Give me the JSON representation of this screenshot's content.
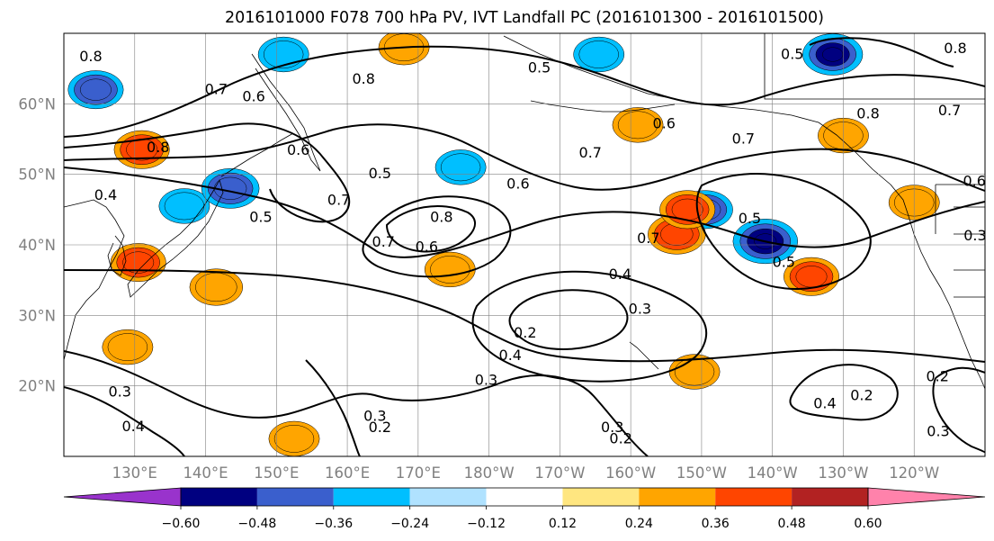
{
  "chart_data": {
    "type": "contour",
    "title": "2016101000 F078 700 hPa PV, IVT Landfall PC (2016101300 - 2016101500)",
    "grid": true,
    "lat_range": [
      10,
      70
    ],
    "lon_range": [
      120,
      250
    ],
    "lat_ticks": [
      {
        "value": 20,
        "label": "20°N"
      },
      {
        "value": 30,
        "label": "30°N"
      },
      {
        "value": 40,
        "label": "40°N"
      },
      {
        "value": 50,
        "label": "50°N"
      },
      {
        "value": 60,
        "label": "60°N"
      }
    ],
    "lon_ticks": [
      {
        "value": 130,
        "label": "130°E"
      },
      {
        "value": 140,
        "label": "140°E"
      },
      {
        "value": 150,
        "label": "150°E"
      },
      {
        "value": 160,
        "label": "160°E"
      },
      {
        "value": 170,
        "label": "170°E"
      },
      {
        "value": 180,
        "label": "180°W"
      },
      {
        "value": 190,
        "label": "170°W"
      },
      {
        "value": 200,
        "label": "160°W"
      },
      {
        "value": 210,
        "label": "150°W"
      },
      {
        "value": 220,
        "label": "140°W"
      },
      {
        "value": 230,
        "label": "130°W"
      },
      {
        "value": 240,
        "label": "120°W"
      }
    ],
    "colorbar": {
      "levels": [
        -0.6,
        -0.48,
        -0.36,
        -0.24,
        -0.12,
        0.12,
        0.24,
        0.36,
        0.48,
        0.6
      ],
      "tick_labels": [
        "−0.60",
        "−0.48",
        "−0.36",
        "−0.24",
        "−0.12",
        "0.12",
        "0.24",
        "0.36",
        "0.48",
        "0.60"
      ],
      "colors": [
        "#9933cc",
        "#000080",
        "#3a5fcd",
        "#00bfff",
        "#b0e2ff",
        "#ffffff",
        "#ffe680",
        "#ffa500",
        "#ff4500",
        "#b22222",
        "#ff82ab"
      ],
      "extend": "both"
    },
    "contour_labels": [
      {
        "text": "0.8",
        "lon": 123.8,
        "lat": 66.7
      },
      {
        "text": "0.7",
        "lon": 141.5,
        "lat": 62.0
      },
      {
        "text": "0.6",
        "lon": 146.8,
        "lat": 61.0
      },
      {
        "text": "0.8",
        "lon": 133.3,
        "lat": 53.8
      },
      {
        "text": "0.4",
        "lon": 125.9,
        "lat": 47.0
      },
      {
        "text": "0.5",
        "lon": 147.8,
        "lat": 43.9
      },
      {
        "text": "0.6",
        "lon": 153.1,
        "lat": 53.4
      },
      {
        "text": "0.7",
        "lon": 158.8,
        "lat": 46.3
      },
      {
        "text": "0.5",
        "lon": 164.6,
        "lat": 50.1
      },
      {
        "text": "0.8",
        "lon": 162.3,
        "lat": 63.5
      },
      {
        "text": "0.8",
        "lon": 173.3,
        "lat": 43.9
      },
      {
        "text": "0.7",
        "lon": 165.1,
        "lat": 40.4
      },
      {
        "text": "0.6",
        "lon": 171.2,
        "lat": 39.7
      },
      {
        "text": "0.5",
        "lon": 187.1,
        "lat": 65.1
      },
      {
        "text": "0.7",
        "lon": 194.3,
        "lat": 53.0
      },
      {
        "text": "0.6",
        "lon": 184.1,
        "lat": 48.6
      },
      {
        "text": "0.6",
        "lon": 204.7,
        "lat": 57.2
      },
      {
        "text": "0.7",
        "lon": 202.5,
        "lat": 40.9
      },
      {
        "text": "0.7",
        "lon": 215.9,
        "lat": 55.0
      },
      {
        "text": "0.5",
        "lon": 216.8,
        "lat": 43.7
      },
      {
        "text": "0.5",
        "lon": 221.6,
        "lat": 37.5
      },
      {
        "text": "0.5",
        "lon": 222.8,
        "lat": 67.0
      },
      {
        "text": "0.8",
        "lon": 233.5,
        "lat": 58.6
      },
      {
        "text": "0.7",
        "lon": 245.0,
        "lat": 59.0
      },
      {
        "text": "0.8",
        "lon": 245.8,
        "lat": 67.8
      },
      {
        "text": "0.6",
        "lon": 248.5,
        "lat": 49.0
      },
      {
        "text": "0.4",
        "lon": 198.5,
        "lat": 35.8
      },
      {
        "text": "0.3",
        "lon": 201.3,
        "lat": 30.9
      },
      {
        "text": "0.2",
        "lon": 185.1,
        "lat": 27.5
      },
      {
        "text": "0.4",
        "lon": 183.0,
        "lat": 24.3
      },
      {
        "text": "0.3",
        "lon": 179.6,
        "lat": 20.8
      },
      {
        "text": "0.3",
        "lon": 163.9,
        "lat": 15.7
      },
      {
        "text": "0.2",
        "lon": 164.6,
        "lat": 14.1
      },
      {
        "text": "0.3",
        "lon": 127.9,
        "lat": 19.1
      },
      {
        "text": "0.4",
        "lon": 129.8,
        "lat": 14.2
      },
      {
        "text": "0.3",
        "lon": 197.4,
        "lat": 14.1
      },
      {
        "text": "0.2",
        "lon": 198.6,
        "lat": 12.5
      },
      {
        "text": "0.4",
        "lon": 227.4,
        "lat": 17.5
      },
      {
        "text": "0.2",
        "lon": 232.6,
        "lat": 18.6
      },
      {
        "text": "0.2",
        "lon": 243.3,
        "lat": 21.3
      },
      {
        "text": "0.3",
        "lon": 243.4,
        "lat": 13.5
      },
      {
        "text": "0.3",
        "lon": 248.6,
        "lat": 41.3
      }
    ],
    "shaded_anomalies": [
      {
        "value": -0.4,
        "lon": 124.5,
        "lat": 62.0
      },
      {
        "value": -0.3,
        "lon": 137.0,
        "lat": 45.5
      },
      {
        "value": -0.45,
        "lon": 143.5,
        "lat": 48.0
      },
      {
        "value": -0.3,
        "lon": 151.0,
        "lat": 67.0
      },
      {
        "value": -0.3,
        "lon": 176.0,
        "lat": 51.0
      },
      {
        "value": -0.3,
        "lon": 195.5,
        "lat": 67.0
      },
      {
        "value": -0.4,
        "lon": 210.5,
        "lat": 45.0
      },
      {
        "value": -0.6,
        "lon": 219.0,
        "lat": 40.5
      },
      {
        "value": -0.5,
        "lon": 228.5,
        "lat": 67.0
      },
      {
        "value": 0.4,
        "lon": 131.0,
        "lat": 53.5
      },
      {
        "value": 0.4,
        "lon": 130.5,
        "lat": 37.5
      },
      {
        "value": 0.35,
        "lon": 141.5,
        "lat": 34.0
      },
      {
        "value": 0.3,
        "lon": 129.0,
        "lat": 25.5
      },
      {
        "value": 0.3,
        "lon": 168.0,
        "lat": 68.0
      },
      {
        "value": 0.3,
        "lon": 174.5,
        "lat": 36.5
      },
      {
        "value": 0.45,
        "lon": 206.5,
        "lat": 41.5
      },
      {
        "value": 0.4,
        "lon": 208.0,
        "lat": 45.0
      },
      {
        "value": 0.4,
        "lon": 225.5,
        "lat": 35.5
      },
      {
        "value": 0.3,
        "lon": 230.0,
        "lat": 55.5
      },
      {
        "value": 0.3,
        "lon": 240.0,
        "lat": 46.0
      },
      {
        "value": 0.3,
        "lon": 201.0,
        "lat": 57.0
      },
      {
        "value": 0.3,
        "lon": 209.0,
        "lat": 22.0
      },
      {
        "value": 0.3,
        "lon": 152.5,
        "lat": 12.5
      }
    ]
  }
}
